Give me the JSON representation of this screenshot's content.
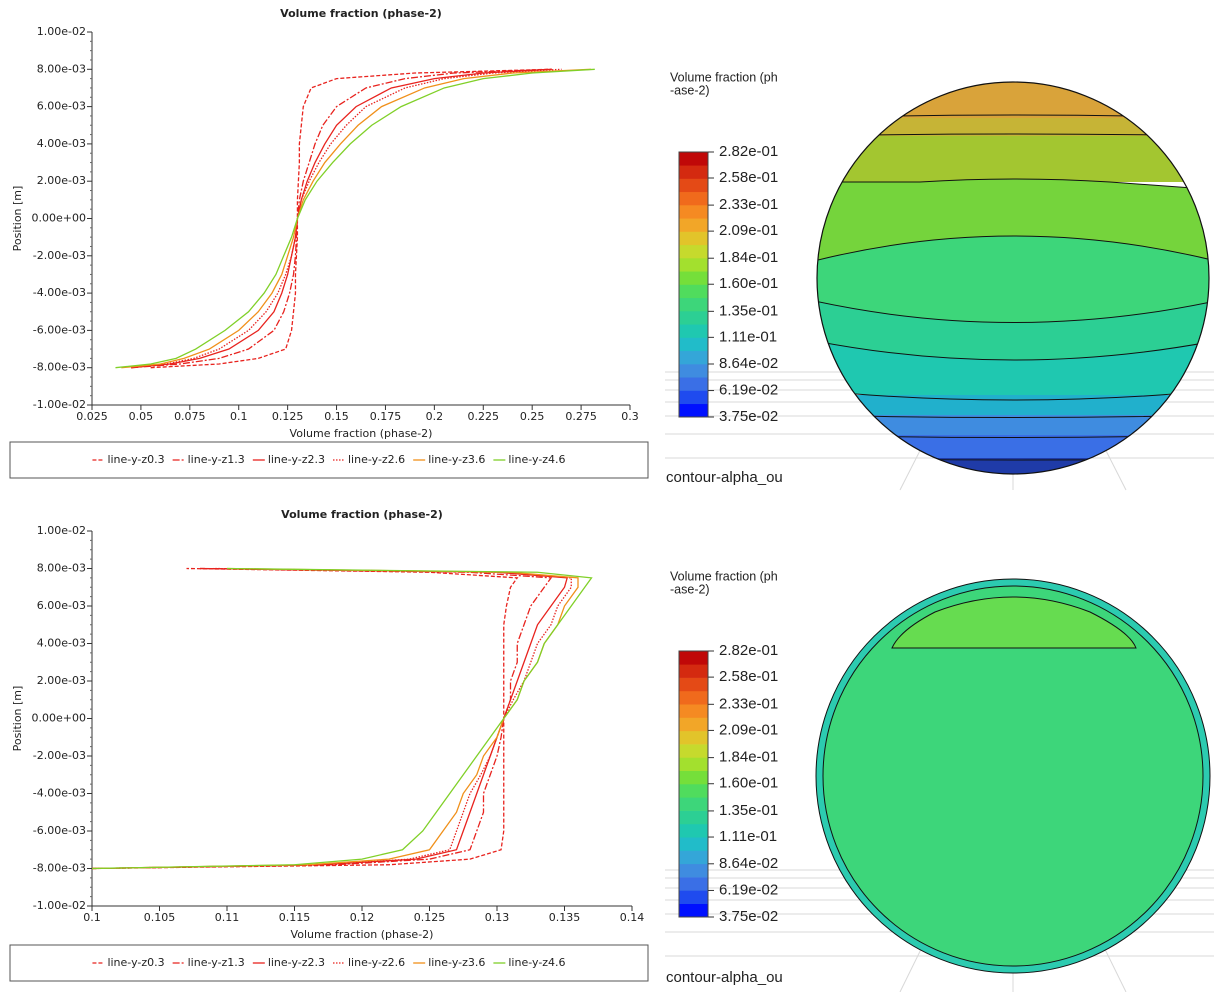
{
  "chart_data": [
    {
      "type": "line",
      "title": "Volume fraction (phase-2)",
      "x_label": "Volume fraction (phase-2)",
      "y_label": "Position [m]",
      "xlim": [
        0.025,
        0.3
      ],
      "xticks": [
        0.025,
        0.05,
        0.075,
        0.1,
        0.125,
        0.15,
        0.175,
        0.2,
        0.225,
        0.25,
        0.275,
        0.3
      ],
      "ylim": [
        -0.01,
        0.01
      ],
      "yticks": [
        {
          "value": -0.01,
          "label": "-1.00e-02"
        },
        {
          "value": -0.008,
          "label": "-8.00e-03"
        },
        {
          "value": -0.006,
          "label": "-6.00e-03"
        },
        {
          "value": -0.004,
          "label": "-4.00e-03"
        },
        {
          "value": -0.002,
          "label": "-2.00e-03"
        },
        {
          "value": 0,
          "label": "0.00e+00"
        },
        {
          "value": 0.002,
          "label": "2.00e-03"
        },
        {
          "value": 0.004,
          "label": "4.00e-03"
        },
        {
          "value": 0.006,
          "label": "6.00e-03"
        },
        {
          "value": 0.008,
          "label": "8.00e-03"
        },
        {
          "value": 0.01,
          "label": "1.00e-02"
        }
      ],
      "y": [
        -0.008,
        -0.0078,
        -0.0075,
        -0.007,
        -0.006,
        -0.005,
        -0.004,
        -0.003,
        -0.002,
        -0.001,
        0,
        0.001,
        0.002,
        0.003,
        0.004,
        0.005,
        0.006,
        0.007,
        0.0075,
        0.0078,
        0.008
      ],
      "series": [
        {
          "name": "line-y-z0.3",
          "color": "#e8231e",
          "style": "dashed",
          "values": [
            0.055,
            0.09,
            0.11,
            0.124,
            0.127,
            0.128,
            0.129,
            0.129,
            0.1295,
            0.13,
            0.13,
            0.13,
            0.1305,
            0.131,
            0.131,
            0.132,
            0.133,
            0.137,
            0.15,
            0.19,
            0.26
          ]
        },
        {
          "name": "line-y-z1.3",
          "color": "#e8231e",
          "style": "dash-dot",
          "values": [
            0.045,
            0.07,
            0.09,
            0.105,
            0.118,
            0.123,
            0.126,
            0.128,
            0.129,
            0.1295,
            0.13,
            0.131,
            0.133,
            0.136,
            0.139,
            0.143,
            0.15,
            0.165,
            0.185,
            0.21,
            0.26
          ]
        },
        {
          "name": "line-y-z2.3",
          "color": "#e8231e",
          "style": "solid",
          "values": [
            0.045,
            0.065,
            0.08,
            0.095,
            0.11,
            0.118,
            0.122,
            0.125,
            0.127,
            0.129,
            0.13,
            0.132,
            0.135,
            0.139,
            0.144,
            0.15,
            0.16,
            0.178,
            0.2,
            0.225,
            0.26
          ]
        },
        {
          "name": "line-y-z2.6",
          "color": "#e8231e",
          "style": "dotted",
          "values": [
            0.045,
            0.063,
            0.077,
            0.09,
            0.105,
            0.114,
            0.12,
            0.124,
            0.127,
            0.129,
            0.13,
            0.132,
            0.136,
            0.141,
            0.147,
            0.155,
            0.165,
            0.185,
            0.205,
            0.23,
            0.265
          ]
        },
        {
          "name": "line-y-z3.6",
          "color": "#f0901a",
          "style": "solid",
          "values": [
            0.04,
            0.06,
            0.072,
            0.085,
            0.1,
            0.11,
            0.117,
            0.122,
            0.125,
            0.128,
            0.13,
            0.133,
            0.138,
            0.144,
            0.152,
            0.161,
            0.173,
            0.195,
            0.215,
            0.24,
            0.28
          ]
        },
        {
          "name": "line-y-z4.6",
          "color": "#80d028",
          "style": "solid",
          "values": [
            0.037,
            0.055,
            0.068,
            0.078,
            0.093,
            0.105,
            0.113,
            0.119,
            0.123,
            0.127,
            0.13,
            0.134,
            0.14,
            0.148,
            0.157,
            0.168,
            0.183,
            0.205,
            0.225,
            0.25,
            0.282
          ]
        }
      ]
    },
    {
      "type": "line",
      "title": "Volume fraction (phase-2)",
      "x_label": "Volume fraction (phase-2)",
      "y_label": "Position [m]",
      "xlim": [
        0.1,
        0.14
      ],
      "xticks": [
        0.1,
        0.105,
        0.11,
        0.115,
        0.12,
        0.125,
        0.13,
        0.135,
        0.14
      ],
      "ylim": [
        -0.01,
        0.01
      ],
      "yticks": [
        {
          "value": -0.01,
          "label": "-1.00e-02"
        },
        {
          "value": -0.008,
          "label": "-8.00e-03"
        },
        {
          "value": -0.006,
          "label": "-6.00e-03"
        },
        {
          "value": -0.004,
          "label": "-4.00e-03"
        },
        {
          "value": -0.002,
          "label": "-2.00e-03"
        },
        {
          "value": 0,
          "label": "0.00e+00"
        },
        {
          "value": 0.002,
          "label": "2.00e-03"
        },
        {
          "value": 0.004,
          "label": "4.00e-03"
        },
        {
          "value": 0.006,
          "label": "6.00e-03"
        },
        {
          "value": 0.008,
          "label": "8.00e-03"
        },
        {
          "value": 0.01,
          "label": "1.00e-02"
        }
      ],
      "y": [
        -0.008,
        -0.0078,
        -0.0075,
        -0.007,
        -0.006,
        -0.005,
        -0.004,
        -0.003,
        -0.002,
        -0.001,
        0,
        0.001,
        0.002,
        0.003,
        0.004,
        0.005,
        0.006,
        0.007,
        0.0075,
        0.0078,
        0.008
      ],
      "series": [
        {
          "name": "line-y-z0.3",
          "color": "#e8231e",
          "style": "dashed",
          "values": [
            0.1,
            0.122,
            0.128,
            0.1303,
            0.1305,
            0.1305,
            0.1305,
            0.1305,
            0.1305,
            0.1305,
            0.1305,
            0.1305,
            0.1305,
            0.1305,
            0.1305,
            0.1305,
            0.1307,
            0.131,
            0.1315,
            0.125,
            0.107
          ]
        },
        {
          "name": "line-y-z1.3",
          "color": "#e8231e",
          "style": "dash-dot",
          "values": [
            0.1,
            0.118,
            0.125,
            0.128,
            0.1285,
            0.129,
            0.129,
            0.1295,
            0.13,
            0.1303,
            0.1305,
            0.131,
            0.131,
            0.1315,
            0.1315,
            0.132,
            0.1325,
            0.1335,
            0.134,
            0.128,
            0.108
          ]
        },
        {
          "name": "line-y-z2.3",
          "color": "#e8231e",
          "style": "solid",
          "values": [
            0.1,
            0.117,
            0.124,
            0.127,
            0.1275,
            0.128,
            0.1285,
            0.129,
            0.1295,
            0.13,
            0.1305,
            0.131,
            0.1315,
            0.132,
            0.1325,
            0.133,
            0.134,
            0.135,
            0.1352,
            0.13,
            0.108
          ]
        },
        {
          "name": "line-y-z2.6",
          "color": "#e8231e",
          "style": "dotted",
          "values": [
            0.1,
            0.117,
            0.1235,
            0.1265,
            0.127,
            0.1275,
            0.128,
            0.1288,
            0.1295,
            0.13,
            0.1305,
            0.1312,
            0.132,
            0.1325,
            0.133,
            0.134,
            0.1345,
            0.1355,
            0.1355,
            0.13,
            0.109
          ]
        },
        {
          "name": "line-y-z3.6",
          "color": "#f0901a",
          "style": "solid",
          "values": [
            0.1,
            0.116,
            0.122,
            0.125,
            0.126,
            0.127,
            0.1275,
            0.1285,
            0.129,
            0.13,
            0.1305,
            0.1315,
            0.132,
            0.133,
            0.1335,
            0.1345,
            0.135,
            0.136,
            0.136,
            0.131,
            0.11
          ]
        },
        {
          "name": "line-y-z4.6",
          "color": "#80d028",
          "style": "solid",
          "values": [
            0.1,
            0.115,
            0.12,
            0.123,
            0.1245,
            0.1255,
            0.1265,
            0.1275,
            0.1285,
            0.1295,
            0.1305,
            0.1315,
            0.132,
            0.133,
            0.1335,
            0.1345,
            0.1355,
            0.1365,
            0.137,
            0.133,
            0.11
          ]
        }
      ]
    }
  ],
  "contours": [
    {
      "title_lines": [
        "Volume fraction (ph",
        "-ase-2)"
      ],
      "name": "contour-alpha_ou",
      "levels": [
        {
          "value": 0.282,
          "label": "2.82e-01"
        },
        {
          "value": 0.258,
          "label": "2.58e-01"
        },
        {
          "value": 0.233,
          "label": "2.33e-01"
        },
        {
          "value": 0.209,
          "label": "2.09e-01"
        },
        {
          "value": 0.184,
          "label": "1.84e-01"
        },
        {
          "value": 0.16,
          "label": "1.60e-01"
        },
        {
          "value": 0.135,
          "label": "1.35e-01"
        },
        {
          "value": 0.111,
          "label": "1.11e-01"
        },
        {
          "value": 0.0864,
          "label": "8.64e-02"
        },
        {
          "value": 0.0619,
          "label": "6.19e-02"
        },
        {
          "value": 0.0375,
          "label": "3.75e-02"
        }
      ],
      "colors": [
        "#0010ff",
        "#1f4bef",
        "#3a6fe6",
        "#3f8ce0",
        "#34a6d8",
        "#21bcc9",
        "#1fc8b0",
        "#2ccf94",
        "#3dd67a",
        "#50dc5d",
        "#75df3a",
        "#a3e02e",
        "#c6da2d",
        "#e2c42a",
        "#f2a628",
        "#f58a22",
        "#f06a1c",
        "#e44a16",
        "#d42a10",
        "#c00808"
      ]
    },
    {
      "title_lines": [
        "Volume fraction (ph",
        "-ase-2)"
      ],
      "name": "contour-alpha_ou",
      "levels": [
        {
          "value": 0.282,
          "label": "2.82e-01"
        },
        {
          "value": 0.258,
          "label": "2.58e-01"
        },
        {
          "value": 0.233,
          "label": "2.33e-01"
        },
        {
          "value": 0.209,
          "label": "2.09e-01"
        },
        {
          "value": 0.184,
          "label": "1.84e-01"
        },
        {
          "value": 0.16,
          "label": "1.60e-01"
        },
        {
          "value": 0.135,
          "label": "1.35e-01"
        },
        {
          "value": 0.111,
          "label": "1.11e-01"
        },
        {
          "value": 0.0864,
          "label": "8.64e-02"
        },
        {
          "value": 0.0619,
          "label": "6.19e-02"
        },
        {
          "value": 0.0375,
          "label": "3.75e-02"
        }
      ],
      "colors": [
        "#0010ff",
        "#1f4bef",
        "#3a6fe6",
        "#3f8ce0",
        "#34a6d8",
        "#21bcc9",
        "#1fc8b0",
        "#2ccf94",
        "#3dd67a",
        "#50dc5d",
        "#75df3a",
        "#a3e02e",
        "#c6da2d",
        "#e2c42a",
        "#f2a628",
        "#f58a22",
        "#f06a1c",
        "#e44a16",
        "#d42a10",
        "#c00808"
      ]
    }
  ]
}
